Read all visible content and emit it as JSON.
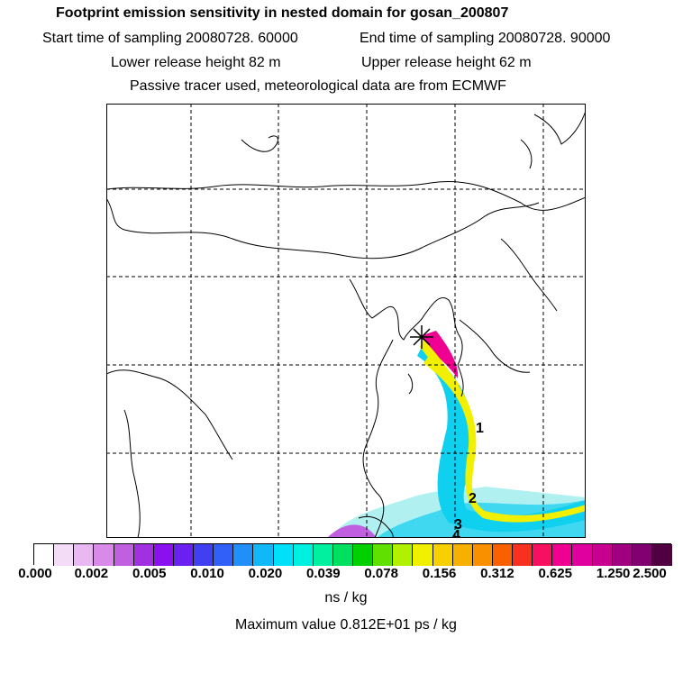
{
  "header": {
    "title": "Footprint emission sensitivity in nested domain for gosan_200807",
    "start_sampling": "Start time of sampling 20080728. 60000",
    "end_sampling": "End time of sampling 20080728. 90000",
    "lower_release": "Lower release height   82 m",
    "upper_release": "Upper release height   62 m",
    "tracer_note": "Passive tracer used, meteorological data are from ECMWF"
  },
  "map": {
    "plume_labels": [
      "1",
      "2",
      "3",
      "4"
    ],
    "release_marker": "release-star"
  },
  "colorbar": {
    "ticks": [
      "0.000",
      "0.002",
      "0.005",
      "0.010",
      "0.020",
      "0.039",
      "0.078",
      "0.156",
      "0.312",
      "0.625",
      "1.250",
      "2.500"
    ],
    "colors": [
      "#ffffff",
      "#f2dcf6",
      "#e8b8f0",
      "#d98ae8",
      "#c060e0",
      "#a030e0",
      "#8a10f0",
      "#6a20f0",
      "#4040f0",
      "#3060f8",
      "#2090f8",
      "#10b8f8",
      "#00e0f8",
      "#00f0e0",
      "#00f0a0",
      "#00e060",
      "#00d000",
      "#60e000",
      "#b0f000",
      "#f0f000",
      "#f8d000",
      "#f8b000",
      "#f89000",
      "#f86000",
      "#f83020",
      "#f81060",
      "#f00090",
      "#e000a0",
      "#c80090",
      "#a00080",
      "#800070",
      "#500040"
    ],
    "unit": "ns / kg",
    "max_value": "Maximum value  0.812E+01 ps / kg"
  }
}
